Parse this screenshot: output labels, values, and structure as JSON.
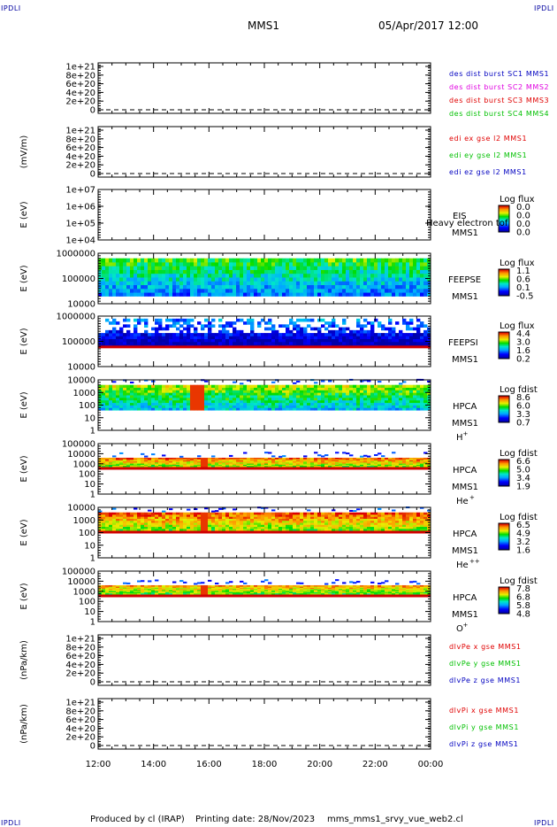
{
  "header": {
    "corner_left_top": "IPDLI",
    "corner_right_top": "IPDLI",
    "mission": "MMS1",
    "datetime": "05/Apr/2017 12:00"
  },
  "footer": {
    "produced": "Produced by cl (IRAP)",
    "printing": "Printing date: 28/Nov/2023",
    "script": "mms_mms1_srvy_vue_web2.cl",
    "corner_left_bottom": "IPDLI",
    "corner_right_bottom": "IPDLI"
  },
  "chart_data": {
    "type": "heatmap",
    "x_ticks": [
      "12:00",
      "14:00",
      "16:00",
      "18:00",
      "20:00",
      "22:00",
      "00:00"
    ],
    "panels": [
      {
        "kind": "line",
        "ylabel": "",
        "yticks": [
          "1e+21",
          "8e+20",
          "6e+20",
          "4e+20",
          "2e+20",
          "0"
        ],
        "legend": [
          {
            "text": "des dist burst SC1 MMS1",
            "color": "#0000c0"
          },
          {
            "text": "des dist burst SC2 MMS2",
            "color": "#e000e0"
          },
          {
            "text": "des dist burst SC3 MMS3",
            "color": "#e00000"
          },
          {
            "text": "des dist burst SC4 MMS4",
            "color": "#00c000"
          }
        ]
      },
      {
        "kind": "line",
        "ylabel": "(mV/m)",
        "yticks": [
          "1e+21",
          "8e+20",
          "6e+20",
          "4e+20",
          "2e+20",
          "0"
        ],
        "legend": [
          {
            "text": "edi ex gse l2 MMS1",
            "color": "#e00000"
          },
          {
            "text": "edi ey gse l2 MMS1",
            "color": "#00c000"
          },
          {
            "text": "edi ez gse l2 MMS1",
            "color": "#0000c0"
          }
        ]
      },
      {
        "kind": "spec",
        "ylabel": "E (eV)",
        "yticks": [
          "1e+07",
          "1e+06",
          "1e+05",
          "1e+04"
        ],
        "empty": true,
        "instrument": [
          "EIS",
          "MMS1"
        ],
        "overlay": "Heavy electron tof",
        "bar_title": "Log flux",
        "bar_ticks": [
          "0.0",
          "0.0",
          "0.0",
          "0.0"
        ],
        "band_low": 0,
        "band_high": 0,
        "base": 0,
        "red_floor": false,
        "bursts": []
      },
      {
        "kind": "spec",
        "ylabel": "E (eV)",
        "yticks": [
          "1000000",
          "100000",
          "10000"
        ],
        "instrument": [
          "FEEPSE",
          "MMS1"
        ],
        "bar_title": "Log flux",
        "bar_ticks": [
          "1.1",
          "0.6",
          "0.1",
          "-0.5"
        ],
        "band_low": 0.85,
        "band_high": 0.1,
        "base": 0.45,
        "red_floor": false,
        "bursts": []
      },
      {
        "kind": "spec",
        "ylabel": "E (eV)",
        "yticks": [
          "1000000",
          "100000",
          "10000"
        ],
        "instrument": [
          "FEEPSI",
          "MMS1"
        ],
        "bar_title": "Log flux",
        "bar_ticks": [
          "4.4",
          "3.0",
          "1.6",
          "0.2"
        ],
        "band_low": 0.62,
        "band_high": 0.05,
        "base": 0.15,
        "red_floor": true,
        "bursts": [],
        "sparse": true
      },
      {
        "kind": "spec",
        "ylabel": "E (eV)",
        "yticks": [
          "10000",
          "1000",
          "100",
          "10",
          "1"
        ],
        "instrument": [
          "HPCA",
          "MMS1",
          "H+"
        ],
        "bar_title": "Log fdist",
        "bar_ticks": [
          "8.6",
          "6.0",
          "3.3",
          "0.7"
        ],
        "band_low": 0.6,
        "band_high": 0.1,
        "base": 0.55,
        "red_floor": false,
        "bursts": [
          [
            0.27,
            0.31
          ]
        ],
        "sparse_top": true
      },
      {
        "kind": "spec",
        "ylabel": "E (eV)",
        "yticks": [
          "100000",
          "10000",
          "1000",
          "100",
          "10",
          "1"
        ],
        "instrument": [
          "HPCA",
          "MMS1",
          "He+"
        ],
        "bar_title": "Log fdist",
        "bar_ticks": [
          "6.6",
          "5.0",
          "3.4",
          "1.9"
        ],
        "band_low": 0.5,
        "band_high": 0.28,
        "base": 0.75,
        "red_floor": true,
        "bursts": [
          [
            0.3,
            0.32
          ]
        ],
        "sparse_top": true
      },
      {
        "kind": "spec",
        "ylabel": "E (eV)",
        "yticks": [
          "10000",
          "1000",
          "100",
          "10",
          "1"
        ],
        "instrument": [
          "HPCA",
          "MMS1",
          "He++"
        ],
        "bar_title": "Log fdist",
        "bar_ticks": [
          "6.5",
          "4.9",
          "3.2",
          "1.6"
        ],
        "band_low": 0.5,
        "band_high": 0.1,
        "base": 0.78,
        "red_floor": true,
        "bursts": [
          [
            0.3,
            0.32
          ]
        ],
        "sparse_top": true
      },
      {
        "kind": "spec",
        "ylabel": "E (eV)",
        "yticks": [
          "100000",
          "10000",
          "1000",
          "100",
          "10",
          "1"
        ],
        "instrument": [
          "HPCA",
          "MMS1",
          "O+"
        ],
        "bar_title": "Log fdist",
        "bar_ticks": [
          "7.8",
          "6.8",
          "5.8",
          "4.8"
        ],
        "band_low": 0.5,
        "band_high": 0.28,
        "base": 0.7,
        "red_floor": true,
        "bursts": [
          [
            0.3,
            0.32
          ]
        ],
        "sparse_top": true
      },
      {
        "kind": "line",
        "ylabel": "(nPa/km)",
        "yticks": [
          "1e+21",
          "8e+20",
          "6e+20",
          "4e+20",
          "2e+20",
          "0"
        ],
        "legend": [
          {
            "text": "dlvPe x gse MMS1",
            "color": "#e00000"
          },
          {
            "text": "dlvPe y gse MMS1",
            "color": "#00c000"
          },
          {
            "text": "dlvPe z gse MMS1",
            "color": "#0000c0"
          }
        ]
      },
      {
        "kind": "line",
        "ylabel": "(nPa/km)",
        "yticks": [
          "1e+21",
          "8e+20",
          "6e+20",
          "4e+20",
          "2e+20",
          "0"
        ],
        "legend": [
          {
            "text": "dlvPi x gse MMS1",
            "color": "#e00000"
          },
          {
            "text": "dlvPi y gse MMS1",
            "color": "#00c000"
          },
          {
            "text": "dlvPi z gse MMS1",
            "color": "#0000c0"
          }
        ]
      }
    ]
  }
}
